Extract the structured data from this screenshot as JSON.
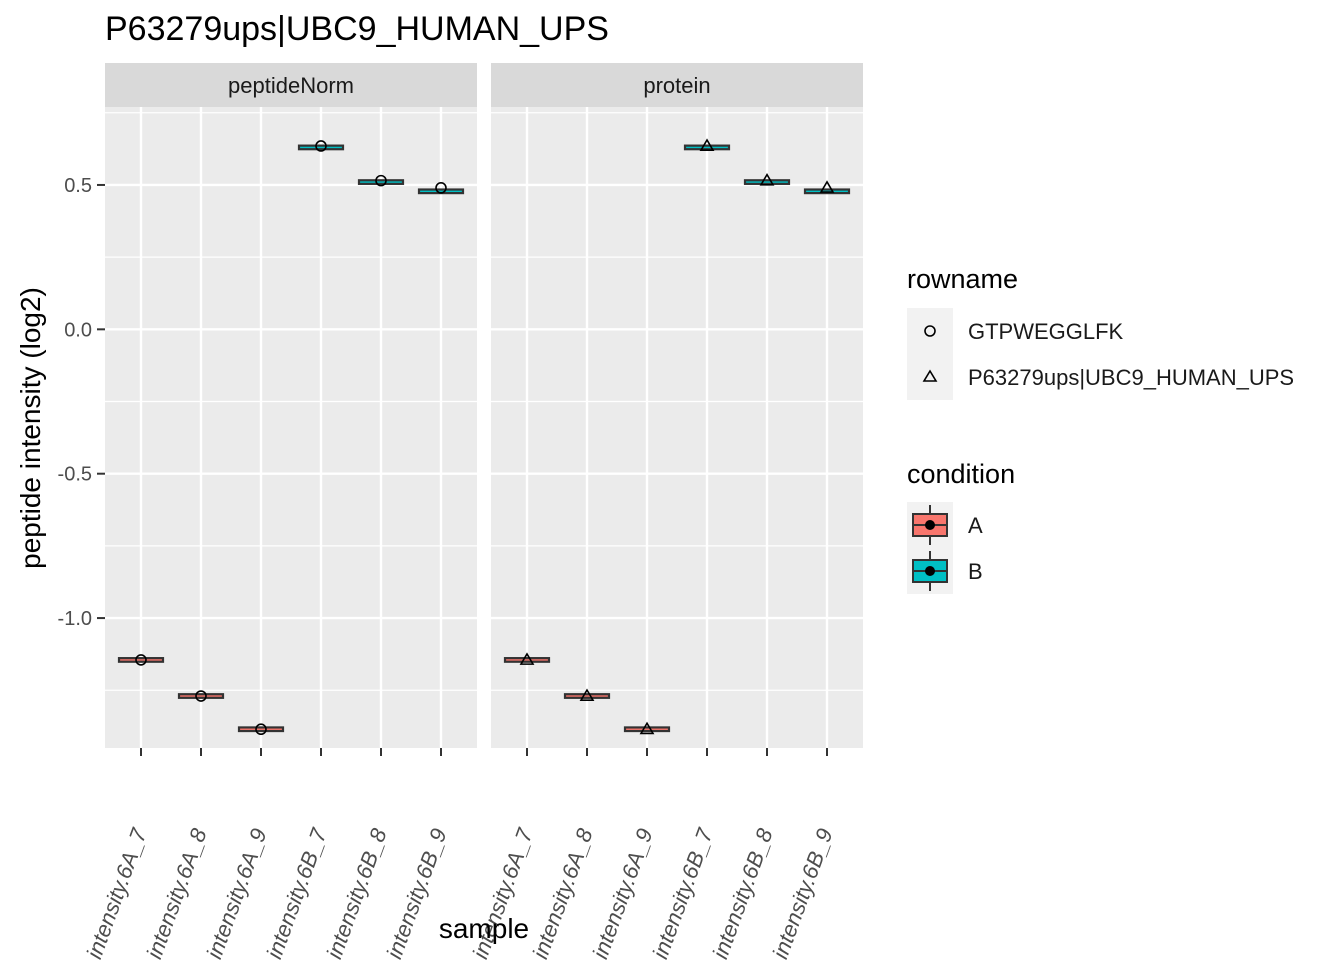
{
  "chart_data": {
    "type": "boxplot-points",
    "title": "P63279ups|UBC9_HUMAN_UPS",
    "xlabel": "sample",
    "ylabel": "peptide intensity (log2)",
    "ylim": [
      -1.45,
      0.77
    ],
    "yticks": [
      0.5,
      0.0,
      -0.5,
      -1.0
    ],
    "ytick_labels": [
      "0.5",
      "0.0",
      "-0.5",
      "-1.0"
    ],
    "grid": true,
    "categories": [
      "intensity.6A_7",
      "intensity.6A_8",
      "intensity.6A_9",
      "intensity.6B_7",
      "intensity.6B_8",
      "intensity.6B_9"
    ],
    "category_condition": [
      "A",
      "A",
      "A",
      "B",
      "B",
      "B"
    ],
    "facets": [
      {
        "label": "peptideNorm",
        "series": [
          {
            "name": "GTPWEGGLFK",
            "shape": "circle",
            "values": [
              -1.145,
              -1.27,
              -1.385,
              0.635,
              0.515,
              0.49
            ]
          }
        ]
      },
      {
        "label": "protein",
        "series": [
          {
            "name": "P63279ups|UBC9_HUMAN_UPS",
            "shape": "triangle",
            "values": [
              -1.145,
              -1.27,
              -1.385,
              0.635,
              0.515,
              0.49
            ]
          }
        ]
      }
    ],
    "box_medians": [
      -1.145,
      -1.27,
      -1.385,
      0.63,
      0.51,
      0.478
    ],
    "legends": [
      {
        "title": "rowname",
        "entries": [
          {
            "label": "GTPWEGGLFK",
            "shape": "circle"
          },
          {
            "label": "P63279ups|UBC9_HUMAN_UPS",
            "shape": "triangle"
          }
        ]
      },
      {
        "title": "condition",
        "entries": [
          {
            "label": "A",
            "color": "#F8766D"
          },
          {
            "label": "B",
            "color": "#00BFC4"
          }
        ]
      }
    ],
    "legend_position": "right",
    "colors": {
      "panel_bg": "#EBEBEB",
      "strip_bg": "#D9D9D9",
      "grid": "#FFFFFF",
      "box_line": "#333333",
      "text": "#1A1A1A",
      "tick_text": "#4D4D4D",
      "A": "#F8766D",
      "B": "#00BFC4"
    }
  }
}
